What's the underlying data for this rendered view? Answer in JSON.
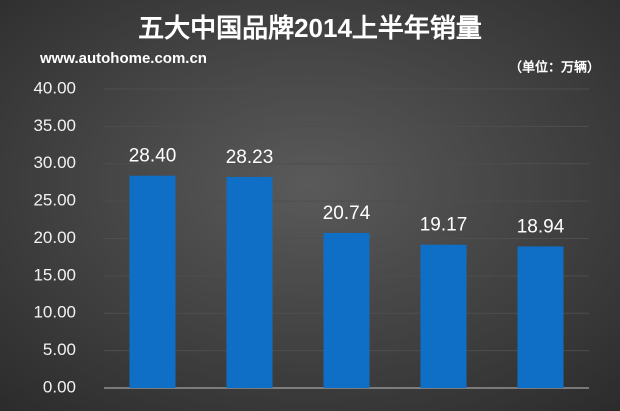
{
  "chart_data": {
    "type": "bar",
    "title": "五大中国品牌2014上半年销量",
    "subtitle": "www.autohome.com.cn",
    "unit_note": "（单位：万辆）",
    "categories": [
      null,
      null,
      null,
      null,
      null
    ],
    "values": [
      28.4,
      28.23,
      20.74,
      19.17,
      18.94
    ],
    "value_labels": [
      "28.40",
      "28.23",
      "20.74",
      "19.17",
      "18.94"
    ],
    "color": "#0f6fc6",
    "ylim": [
      0,
      40
    ],
    "yticks": [
      {
        "value": 0,
        "label": "0.00"
      },
      {
        "value": 5,
        "label": "5.00"
      },
      {
        "value": 10,
        "label": "10.00"
      },
      {
        "value": 15,
        "label": "15.00"
      },
      {
        "value": 20,
        "label": "20.00"
      },
      {
        "value": 25,
        "label": "25.00"
      },
      {
        "value": 30,
        "label": "30.00"
      },
      {
        "value": 35,
        "label": "35.00"
      },
      {
        "value": 40,
        "label": "40.00"
      }
    ],
    "grid": true
  }
}
